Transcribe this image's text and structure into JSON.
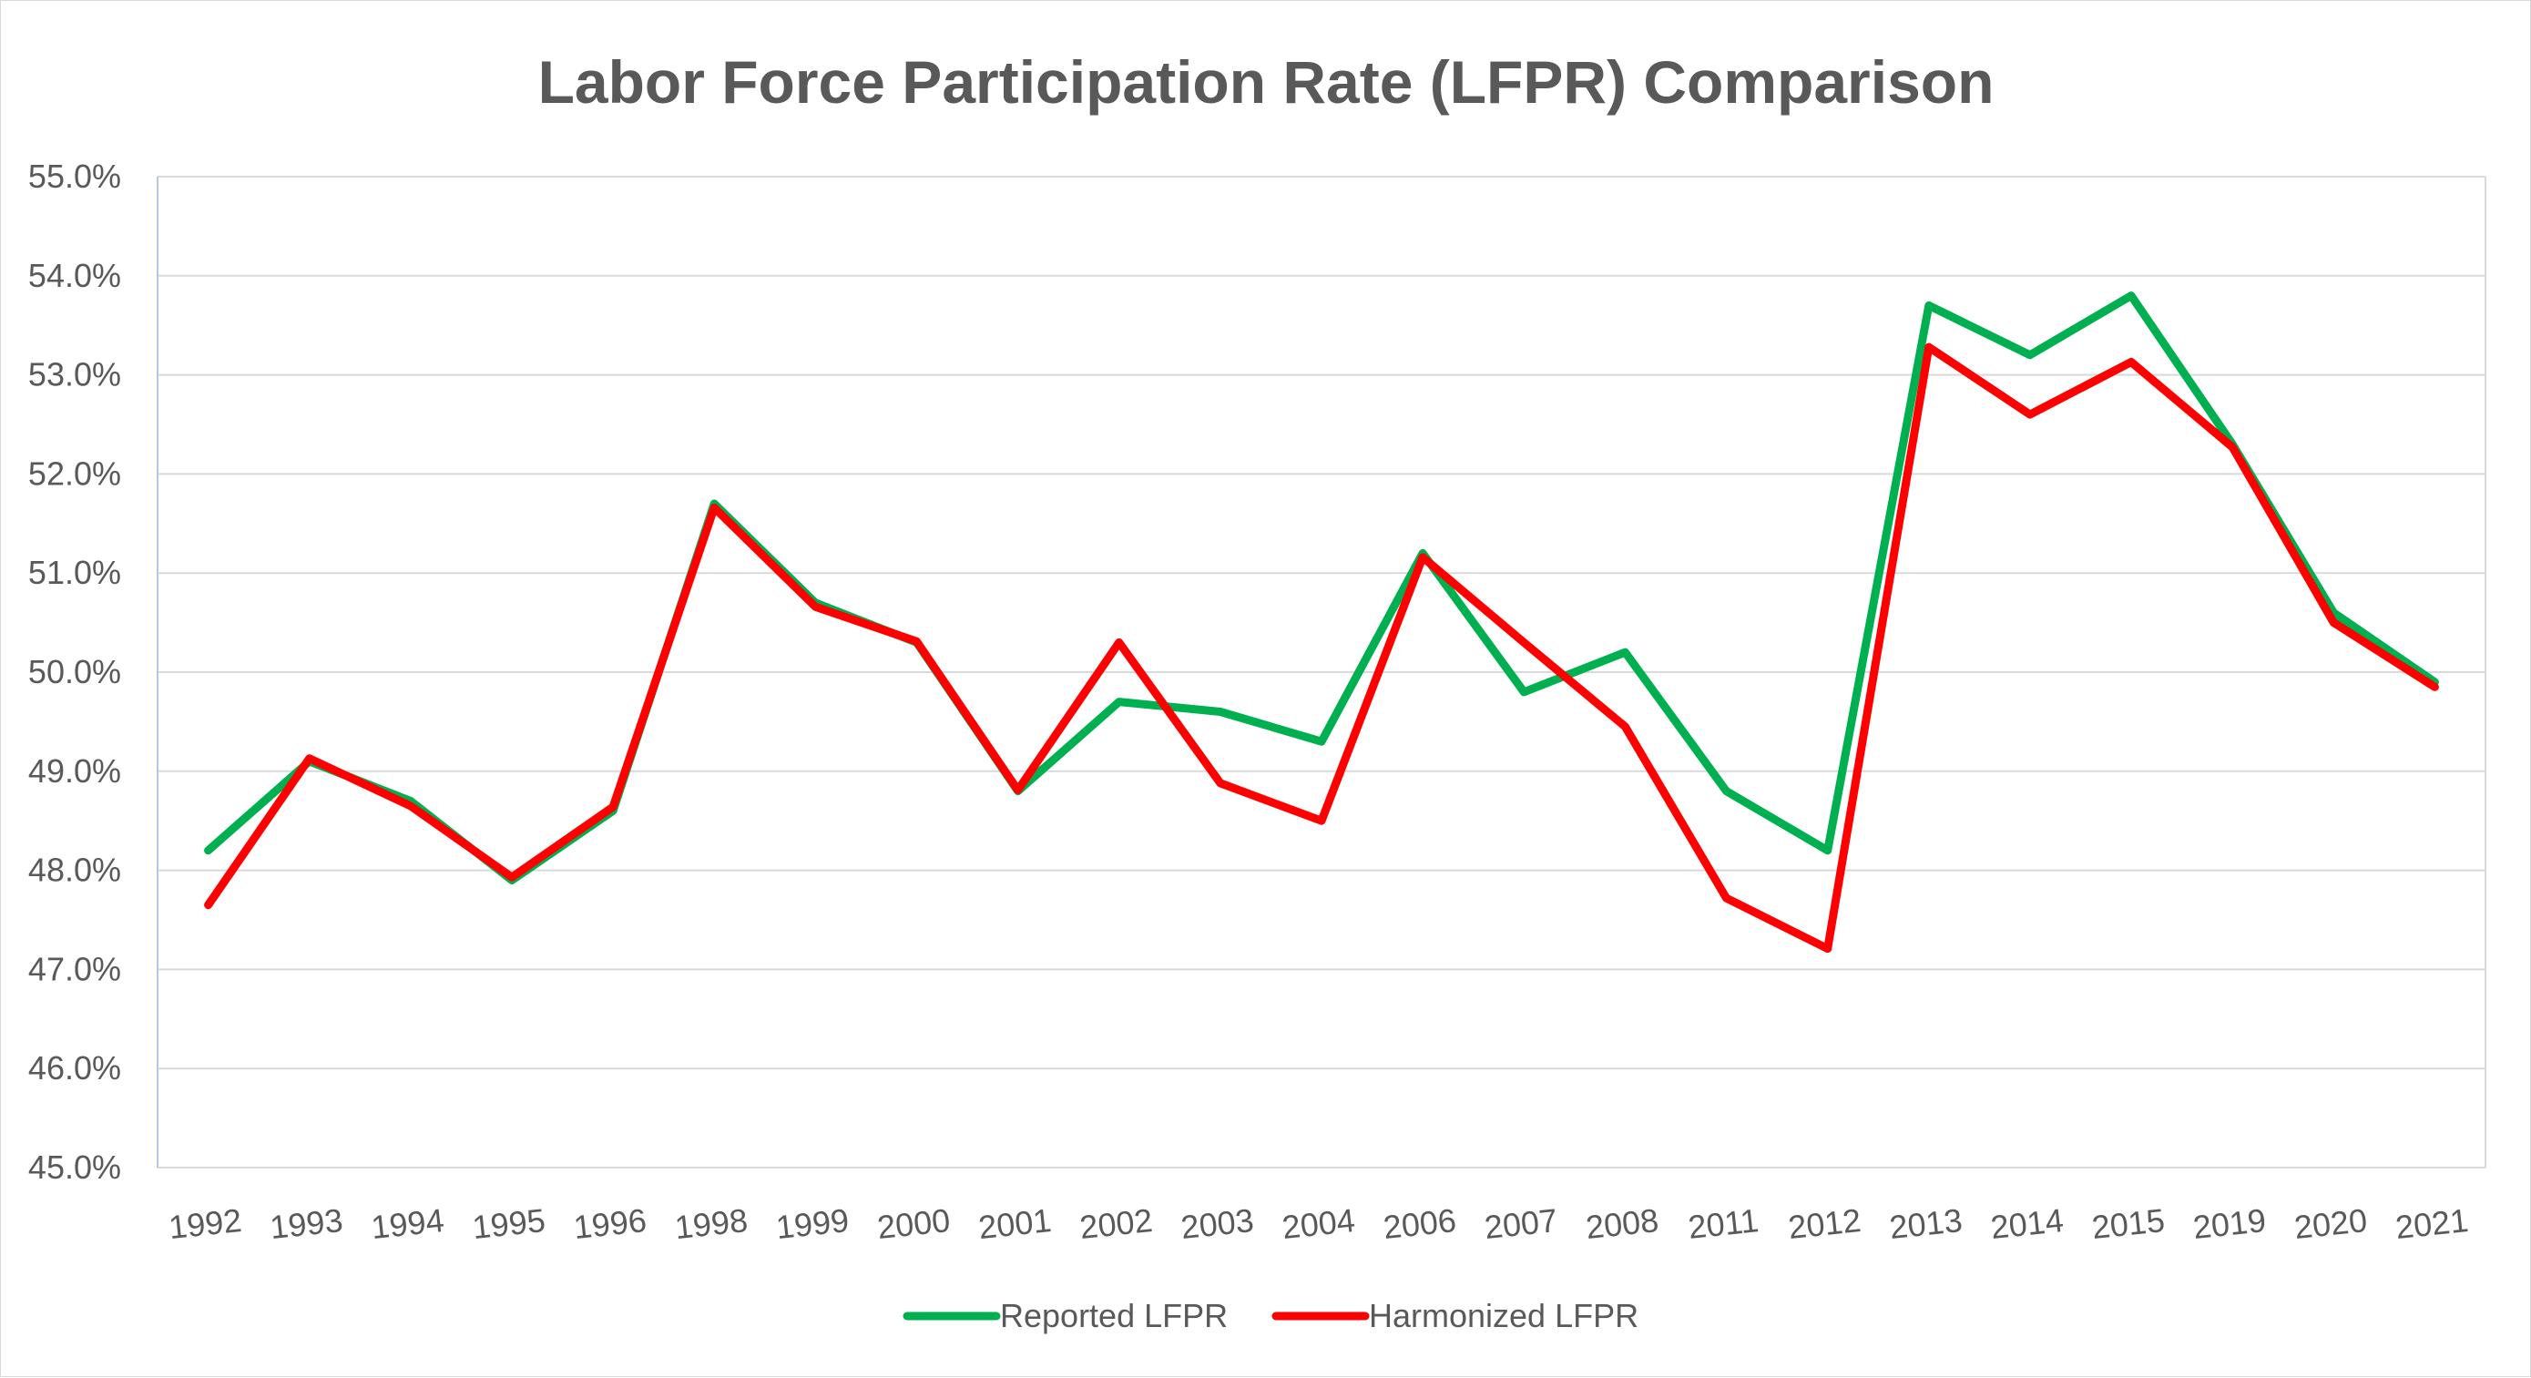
{
  "chart_data": {
    "type": "line",
    "title": "Labor Force Participation Rate (LFPR) Comparison",
    "xlabel": "",
    "ylabel": "",
    "categories": [
      "1992",
      "1993",
      "1994",
      "1995",
      "1996",
      "1998",
      "1999",
      "2000",
      "2001",
      "2002",
      "2003",
      "2004",
      "2006",
      "2007",
      "2008",
      "2011",
      "2012",
      "2013",
      "2014",
      "2015",
      "2019",
      "2020",
      "2021"
    ],
    "ylim": [
      45.0,
      55.0
    ],
    "yticks": [
      "45.0%",
      "46.0%",
      "47.0%",
      "48.0%",
      "49.0%",
      "50.0%",
      "51.0%",
      "52.0%",
      "53.0%",
      "54.0%",
      "55.0%"
    ],
    "grid": true,
    "legend_position": "bottom",
    "series": [
      {
        "name": "Reported LFPR",
        "color": "#00b050",
        "values": [
          48.2,
          49.1,
          48.7,
          47.9,
          48.6,
          51.7,
          50.7,
          50.3,
          48.8,
          49.7,
          49.6,
          49.3,
          51.2,
          49.8,
          50.2,
          48.8,
          48.2,
          53.7,
          53.2,
          53.8,
          52.3,
          50.6,
          49.9
        ]
      },
      {
        "name": "Harmonized LFPR",
        "color": "#ff0000",
        "values": [
          47.65,
          49.13,
          48.65,
          47.93,
          48.64,
          51.66,
          50.66,
          50.31,
          48.81,
          50.3,
          48.88,
          48.5,
          51.16,
          50.3,
          49.45,
          47.72,
          47.21,
          53.28,
          52.6,
          53.13,
          52.27,
          50.5,
          49.85
        ]
      }
    ]
  }
}
